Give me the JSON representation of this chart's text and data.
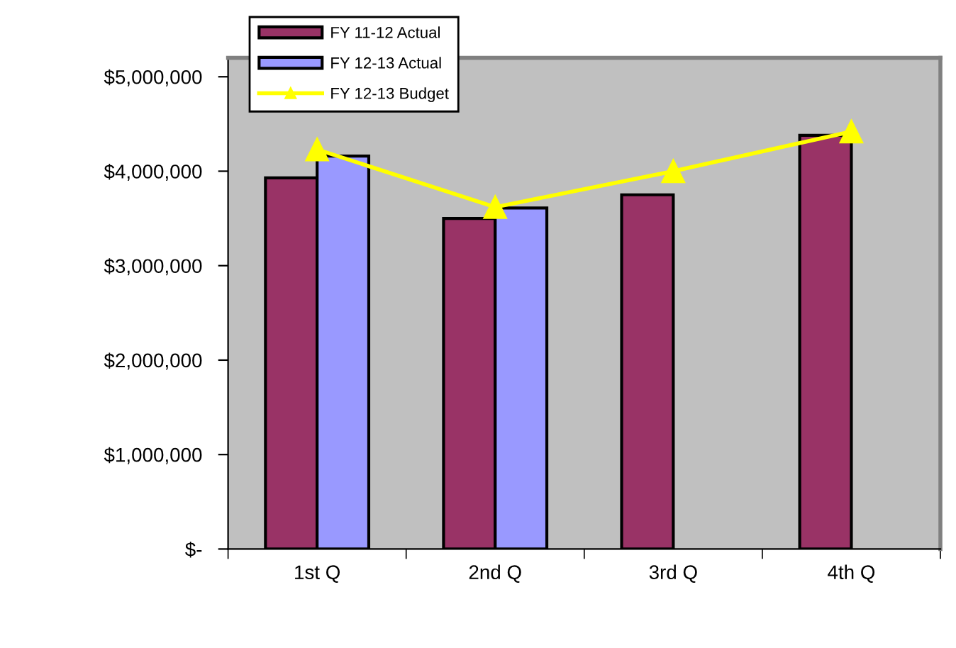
{
  "chart_data": {
    "type": "bar",
    "categories": [
      "1st Q",
      "2nd Q",
      "3rd Q",
      "4th Q"
    ],
    "series": [
      {
        "name": "FY 11-12 Actual",
        "color": "#993366",
        "values": [
          3930000,
          3500000,
          3750000,
          4380000
        ]
      },
      {
        "name": "FY 12-13 Actual",
        "color": "#9999ff",
        "values": [
          4160000,
          3610000,
          null,
          null
        ]
      },
      {
        "name": "FY 12-13 Budget",
        "type": "line",
        "color": "#ffff00",
        "marker": "triangle",
        "values": [
          4230000,
          3620000,
          4000000,
          4420000
        ]
      }
    ],
    "ylim": [
      0,
      5200000
    ],
    "yticks": [
      {
        "value": 0,
        "label": "$-"
      },
      {
        "value": 1000000,
        "label": "$1,000,000"
      },
      {
        "value": 2000000,
        "label": "$2,000,000"
      },
      {
        "value": 3000000,
        "label": "$3,000,000"
      },
      {
        "value": 4000000,
        "label": "$4,000,000"
      },
      {
        "value": 5000000,
        "label": "$5,000,000"
      }
    ],
    "grid": false,
    "legend": "top left"
  }
}
